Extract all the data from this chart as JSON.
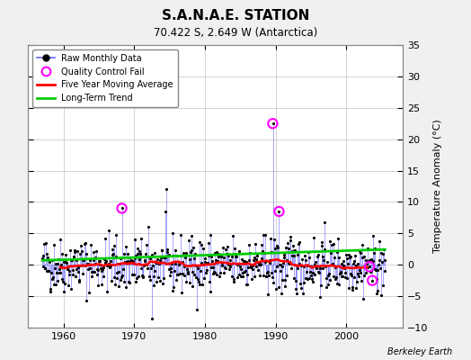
{
  "title": "S.A.N.A.E. STATION",
  "subtitle": "70.422 S, 2.649 W (Antarctica)",
  "ylabel_right": "Temperature Anomaly (°C)",
  "credit": "Berkeley Earth",
  "xlim": [
    1955,
    2008
  ],
  "ylim": [
    -10,
    35
  ],
  "yticks": [
    -10,
    -5,
    0,
    5,
    10,
    15,
    20,
    25,
    30,
    35
  ],
  "xticks": [
    1960,
    1970,
    1980,
    1990,
    2000
  ],
  "fig_bg_color": "#f0f0f0",
  "plot_bg_color": "#ffffff",
  "grid_color": "#cccccc",
  "raw_line_color": "#6666ff",
  "raw_dot_color": "#000000",
  "qc_fail_color": "#ff00ff",
  "moving_avg_color": "#ff0000",
  "trend_color": "#00cc00",
  "trend_intercept": 0.7,
  "trend_slope": 0.003,
  "seed": 42,
  "start_year": 1957.0,
  "end_year": 2005.5,
  "noise_scale": 2.2,
  "spikes": [
    {
      "year": 1968.25,
      "val": 9.0,
      "qc": true
    },
    {
      "year": 1972.5,
      "val": -8.5,
      "qc": false
    },
    {
      "year": 1974.5,
      "val": 12.0,
      "qc": false
    },
    {
      "year": 1989.6,
      "val": 22.5,
      "qc": true
    },
    {
      "year": 1990.5,
      "val": 8.5,
      "qc": true
    },
    {
      "year": 1990.8,
      "val": -4.5,
      "qc": false
    },
    {
      "year": 2003.3,
      "val": -0.3,
      "qc": true
    },
    {
      "year": 2003.7,
      "val": -2.5,
      "qc": true
    }
  ]
}
